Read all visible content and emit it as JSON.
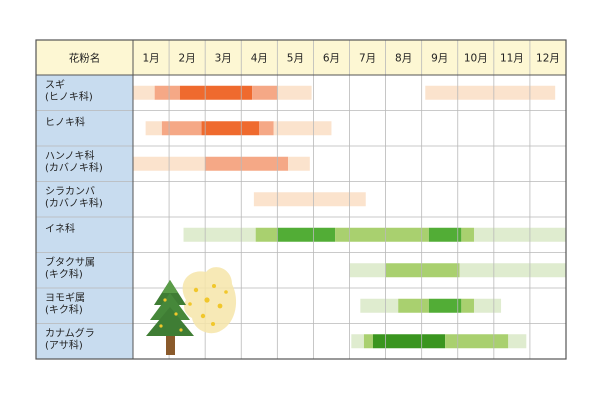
{
  "chart_data": {
    "type": "heatmap",
    "header_label": "花粉名",
    "months": [
      "1月",
      "2月",
      "3月",
      "4月",
      "5月",
      "6月",
      "7月",
      "8月",
      "9月",
      "10月",
      "11月",
      "12月"
    ],
    "colors": {
      "orange": {
        "1": "#fbe3cd",
        "2": "#f5a886",
        "3": "#ef6a2e"
      },
      "green": {
        "1": "#dfeccf",
        "2": "#a9d06f",
        "3": "#52ad36",
        "4": "#3a951f"
      },
      "header_bg": "#fdf7d3",
      "label_bg": "#c8dcef",
      "grid": "#b9b9b9",
      "border": "#555555"
    },
    "rows": [
      {
        "lines": [
          "スギ",
          "(ヒノキ科)"
        ],
        "palette": "orange",
        "segments": [
          [
            1.0,
            1.6,
            1
          ],
          [
            1.6,
            2.3,
            2
          ],
          [
            2.3,
            4.3,
            3
          ],
          [
            4.3,
            5.0,
            2
          ],
          [
            5.0,
            5.95,
            1
          ],
          [
            9.1,
            12.7,
            1
          ]
        ]
      },
      {
        "lines": [
          "ヒノキ科"
        ],
        "palette": "orange",
        "segments": [
          [
            1.35,
            1.8,
            1
          ],
          [
            1.8,
            2.9,
            2
          ],
          [
            2.9,
            4.5,
            3
          ],
          [
            4.5,
            4.9,
            2
          ],
          [
            4.9,
            6.5,
            1
          ]
        ]
      },
      {
        "lines": [
          "ハンノキ科",
          "(カバノキ科)"
        ],
        "palette": "orange",
        "segments": [
          [
            1.0,
            3.0,
            1
          ],
          [
            3.0,
            5.3,
            2
          ],
          [
            5.3,
            5.9,
            1
          ]
        ]
      },
      {
        "lines": [
          "シラカンバ",
          "(カバノキ科)"
        ],
        "palette": "orange",
        "segments": [
          [
            4.35,
            7.45,
            1
          ]
        ]
      },
      {
        "lines": [
          "イネ科"
        ],
        "palette": "green",
        "segments": [
          [
            2.4,
            4.4,
            1
          ],
          [
            4.4,
            5.0,
            2
          ],
          [
            5.0,
            6.6,
            3
          ],
          [
            6.6,
            9.2,
            2
          ],
          [
            9.2,
            10.1,
            3
          ],
          [
            10.1,
            10.45,
            2
          ],
          [
            10.45,
            13.0,
            1
          ]
        ]
      },
      {
        "lines": [
          "ブタクサ属",
          "(キク科)"
        ],
        "palette": "green",
        "segments": [
          [
            7.0,
            8.0,
            1
          ],
          [
            8.0,
            10.05,
            2
          ],
          [
            10.05,
            13.0,
            1
          ]
        ]
      },
      {
        "lines": [
          "ヨモギ属",
          "(キク科)"
        ],
        "palette": "green",
        "segments": [
          [
            7.3,
            8.35,
            1
          ],
          [
            8.35,
            9.2,
            2
          ],
          [
            9.2,
            10.1,
            3
          ],
          [
            10.1,
            10.45,
            2
          ],
          [
            10.45,
            11.2,
            1
          ]
        ]
      },
      {
        "lines": [
          "カナムグラ",
          "(アサ科)"
        ],
        "palette": "green",
        "segments": [
          [
            7.05,
            7.4,
            1
          ],
          [
            7.4,
            7.65,
            2
          ],
          [
            7.65,
            9.65,
            4
          ],
          [
            9.65,
            11.4,
            2
          ],
          [
            11.4,
            11.9,
            1
          ]
        ]
      }
    ]
  }
}
